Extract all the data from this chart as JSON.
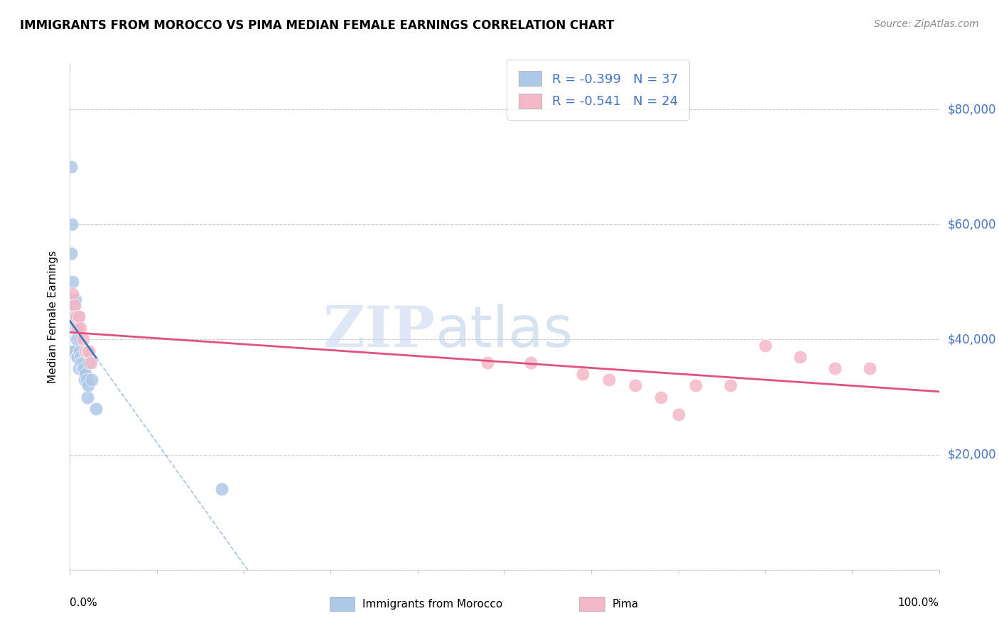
{
  "title": "IMMIGRANTS FROM MOROCCO VS PIMA MEDIAN FEMALE EARNINGS CORRELATION CHART",
  "source": "Source: ZipAtlas.com",
  "ylabel": "Median Female Earnings",
  "legend1_R": "-0.399",
  "legend1_N": "37",
  "legend2_R": "-0.541",
  "legend2_N": "24",
  "blue_color": "#aec8e8",
  "pink_color": "#f4b8c8",
  "blue_line_color": "#3a7abf",
  "pink_line_color": "#e05080",
  "blue_dark": "#2060a0",
  "pink_dark": "#d03060",
  "blue_legend_color": "#4472c4",
  "xlim": [
    0.0,
    1.0
  ],
  "ylim": [
    0,
    88000
  ],
  "yticks": [
    0,
    20000,
    40000,
    60000,
    80000
  ],
  "morocco_x": [
    0.001,
    0.001,
    0.002,
    0.002,
    0.002,
    0.003,
    0.003,
    0.003,
    0.004,
    0.004,
    0.005,
    0.005,
    0.006,
    0.006,
    0.007,
    0.008,
    0.008,
    0.008,
    0.009,
    0.01,
    0.01,
    0.011,
    0.012,
    0.013,
    0.014,
    0.015,
    0.016,
    0.017,
    0.018,
    0.019,
    0.02,
    0.021,
    0.022,
    0.025,
    0.03,
    0.175,
    0.001
  ],
  "morocco_y": [
    55000,
    43000,
    60000,
    46000,
    38000,
    50000,
    47000,
    38000,
    46000,
    44000,
    46000,
    44000,
    47000,
    43000,
    42000,
    44000,
    40000,
    37000,
    37000,
    44000,
    35000,
    38000,
    37000,
    36000,
    35000,
    36000,
    35000,
    33000,
    34000,
    33000,
    30000,
    32000,
    36000,
    33000,
    28000,
    14000,
    70000
  ],
  "pima_x": [
    0.003,
    0.005,
    0.007,
    0.009,
    0.01,
    0.012,
    0.015,
    0.018,
    0.02,
    0.022,
    0.024,
    0.48,
    0.53,
    0.59,
    0.62,
    0.65,
    0.68,
    0.7,
    0.72,
    0.76,
    0.8,
    0.84,
    0.88,
    0.92
  ],
  "pima_y": [
    48000,
    46000,
    44000,
    42000,
    44000,
    42000,
    40000,
    38000,
    38000,
    38000,
    36000,
    36000,
    36000,
    34000,
    33000,
    32000,
    30000,
    27000,
    32000,
    32000,
    39000,
    37000,
    35000,
    35000
  ]
}
